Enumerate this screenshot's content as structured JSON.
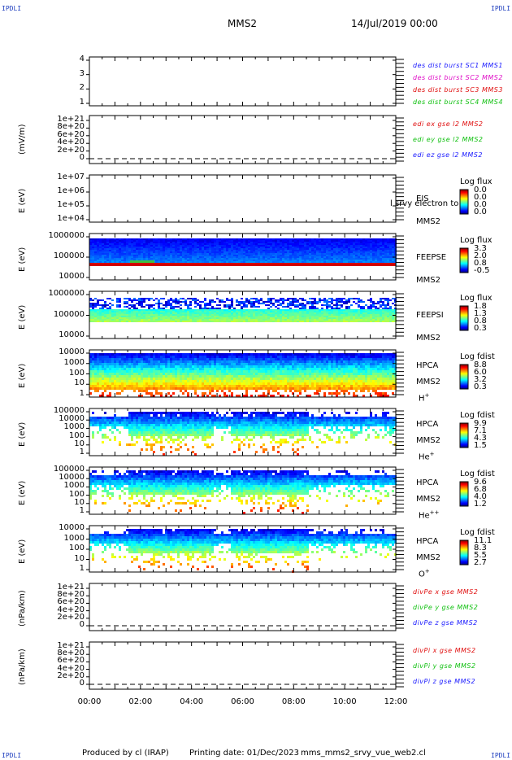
{
  "header": {
    "corner_label": "IPDLI",
    "title": "MMS2",
    "date": "14/Jul/2019 00:00"
  },
  "footer": {
    "produced": "Produced by cl (IRAP)",
    "printing": "Printing date: 01/Dec/2023",
    "file": "mms_mms2_srvy_vue_web2.cl"
  },
  "chart_data": {
    "type": "heatmap",
    "x_axis": {
      "ticks": [
        "00:00",
        "02:00",
        "04:00",
        "06:00",
        "08:00",
        "10:00",
        "12:00"
      ],
      "range_hours": [
        0,
        12
      ]
    },
    "panels": [
      {
        "id": "des-dist",
        "ylabel": "",
        "yticks": [
          "4",
          "3",
          "2",
          "1"
        ],
        "legend": [
          {
            "text": "des dist burst SC1 MMS1",
            "color": "#1a1aff"
          },
          {
            "text": "des dist burst SC2 MMS2",
            "color": "#e010c8"
          },
          {
            "text": "des dist burst SC3 MMS3",
            "color": "#e01010"
          },
          {
            "text": "des dist burst SC4 MMS4",
            "color": "#10c010"
          }
        ]
      },
      {
        "id": "edi-e",
        "ylabel": "(mV/m)",
        "yticks": [
          "1e+21",
          "8e+20",
          "6e+20",
          "4e+20",
          "2e+20",
          "0"
        ],
        "legend": [
          {
            "text": "edi ex gse l2 MMS2",
            "color": "#e01010"
          },
          {
            "text": "edi ey gse l2 MMS2",
            "color": "#10c010"
          },
          {
            "text": "edi ez gse l2 MMS2",
            "color": "#1a1aff"
          }
        ]
      },
      {
        "id": "eis",
        "ylabel": "E (eV)",
        "yticks": [
          "1e+07",
          "1e+06",
          "1e+05",
          "1e+04"
        ],
        "instrument": [
          "EIS",
          "MMS2"
        ],
        "overlay_text": "l srvy electron to",
        "colorbar": {
          "title": "Log flux",
          "values": [
            "0.0",
            "0.0",
            "0.0",
            "0.0"
          ]
        }
      },
      {
        "id": "feepse",
        "ylabel": "E (eV)",
        "yticks": [
          "1000000",
          "100000",
          "10000"
        ],
        "instrument": [
          "FEEPSE",
          "MMS2"
        ],
        "colorbar": {
          "title": "Log flux",
          "values": [
            "3.3",
            "2.0",
            "0.8",
            "-0.5"
          ]
        }
      },
      {
        "id": "feepsi",
        "ylabel": "E (eV)",
        "yticks": [
          "1000000",
          "100000",
          "10000"
        ],
        "instrument": [
          "FEEPSI",
          "MMS2"
        ],
        "colorbar": {
          "title": "Log flux",
          "values": [
            "1.8",
            "1.3",
            "0.8",
            "0.3"
          ]
        }
      },
      {
        "id": "hpca-h",
        "ylabel": "E (eV)",
        "yticks": [
          "10000",
          "1000",
          "100",
          "10",
          "1"
        ],
        "instrument": [
          "HPCA",
          "MMS2"
        ],
        "species": "H",
        "species_sup": "+",
        "colorbar": {
          "title": "Log fdist",
          "values": [
            "8.8",
            "6.0",
            "3.2",
            "0.3"
          ]
        }
      },
      {
        "id": "hpca-he",
        "ylabel": "E (eV)",
        "yticks": [
          "100000",
          "10000",
          "1000",
          "100",
          "10",
          "1"
        ],
        "instrument": [
          "HPCA",
          "MMS2"
        ],
        "species": "He",
        "species_sup": "+",
        "colorbar": {
          "title": "Log fdist",
          "values": [
            "9.9",
            "7.1",
            "4.3",
            "1.5"
          ]
        }
      },
      {
        "id": "hpca-he2",
        "ylabel": "E (eV)",
        "yticks": [
          "100000",
          "10000",
          "1000",
          "100",
          "10",
          "1"
        ],
        "instrument": [
          "HPCA",
          "MMS2"
        ],
        "species": "He",
        "species_sup": "++",
        "colorbar": {
          "title": "Log fdist",
          "values": [
            "9.6",
            "6.8",
            "4.0",
            "1.2"
          ]
        }
      },
      {
        "id": "hpca-o",
        "ylabel": "E (eV)",
        "yticks": [
          "10000",
          "1000",
          "100",
          "10",
          "1"
        ],
        "instrument": [
          "HPCA",
          "MMS2"
        ],
        "species": "O",
        "species_sup": "+",
        "colorbar": {
          "title": "Log fdist",
          "values": [
            "11.1",
            "8.3",
            "5.5",
            "2.7"
          ]
        }
      },
      {
        "id": "divpe",
        "ylabel": "(nPa/km)",
        "yticks": [
          "1e+21",
          "8e+20",
          "6e+20",
          "4e+20",
          "2e+20",
          "0"
        ],
        "legend": [
          {
            "text": "divPe x gse MMS2",
            "color": "#e01010"
          },
          {
            "text": "divPe y gse MMS2",
            "color": "#10c010"
          },
          {
            "text": "divPe z gse MMS2",
            "color": "#1a1aff"
          }
        ]
      },
      {
        "id": "divpi",
        "ylabel": "(nPa/km)",
        "yticks": [
          "1e+21",
          "8e+20",
          "6e+20",
          "4e+20",
          "2e+20",
          "0"
        ],
        "legend": [
          {
            "text": "divPi x gse MMS2",
            "color": "#e01010"
          },
          {
            "text": "divPi y gse MMS2",
            "color": "#10c010"
          },
          {
            "text": "divPi z gse MMS2",
            "color": "#1a1aff"
          }
        ]
      }
    ]
  }
}
